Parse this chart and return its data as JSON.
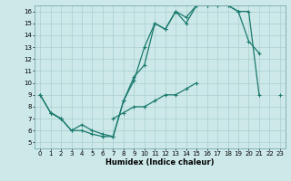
{
  "title": "",
  "xlabel": "Humidex (Indice chaleur)",
  "bg_color": "#cce8e8",
  "line_color": "#1a7a6e",
  "grid_color": "#aacfcf",
  "xlim": [
    -0.5,
    23.5
  ],
  "ylim": [
    4.5,
    16.5
  ],
  "xticks": [
    0,
    1,
    2,
    3,
    4,
    5,
    6,
    7,
    8,
    9,
    10,
    11,
    12,
    13,
    14,
    15,
    16,
    17,
    18,
    19,
    20,
    21,
    22,
    23
  ],
  "yticks": [
    5,
    6,
    7,
    8,
    9,
    10,
    11,
    12,
    13,
    14,
    15,
    16
  ],
  "line1_x": [
    0,
    1,
    2,
    3,
    4,
    5,
    6,
    7,
    8,
    9,
    10,
    11,
    12,
    13,
    14,
    15,
    16,
    17,
    18,
    19,
    20,
    21
  ],
  "line1_y": [
    9,
    7.5,
    7,
    6.0,
    6.0,
    5.7,
    5.5,
    5.5,
    8.5,
    10.2,
    13.0,
    15.0,
    14.5,
    16.0,
    15.5,
    16.5,
    16.5,
    16.5,
    16.5,
    16.0,
    13.5,
    12.5
  ],
  "line2_x": [
    0,
    1,
    2,
    3,
    4,
    5,
    6,
    7,
    8,
    9,
    10,
    11,
    12,
    13,
    14,
    15,
    16,
    17,
    18,
    19,
    20,
    21,
    22,
    23
  ],
  "line2_y": [
    9,
    7.5,
    7,
    6.0,
    6.5,
    6.0,
    5.7,
    5.5,
    8.5,
    10.5,
    11.5,
    15.0,
    14.5,
    16.0,
    15.0,
    16.5,
    16.5,
    16.5,
    16.5,
    16.0,
    16.0,
    9.0,
    null,
    null
  ],
  "line3_x": [
    1,
    2,
    3,
    4,
    5,
    6,
    7,
    8,
    9,
    10,
    11,
    12,
    13,
    14,
    15,
    16,
    17,
    18,
    19,
    20,
    21,
    22,
    23
  ],
  "line3_y": [
    7.5,
    7.0,
    null,
    null,
    null,
    null,
    7.0,
    7.5,
    8.0,
    8.0,
    8.5,
    9.0,
    9.0,
    9.5,
    10.0,
    null,
    null,
    null,
    null,
    null,
    null,
    null,
    9.0
  ]
}
